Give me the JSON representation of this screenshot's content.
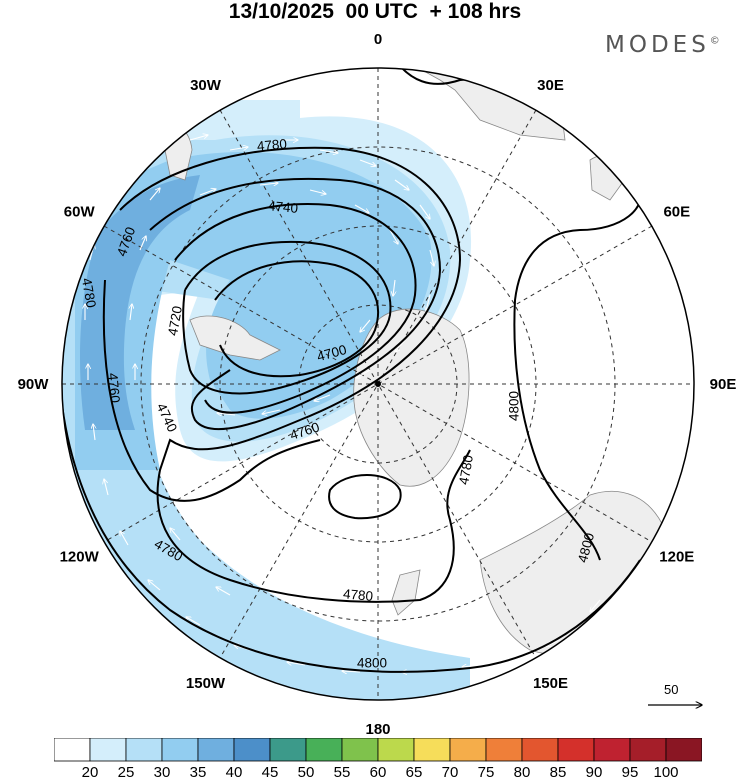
{
  "title": "13/10/2025  00 UTC  + 108 hrs",
  "brand": "MODES",
  "brand_mark": "©",
  "longitude_labels": [
    {
      "deg": 0,
      "text": "0"
    },
    {
      "deg": 30,
      "text": "30E"
    },
    {
      "deg": 60,
      "text": "60E"
    },
    {
      "deg": 90,
      "text": "90E"
    },
    {
      "deg": 120,
      "text": "120E"
    },
    {
      "deg": 150,
      "text": "150E"
    },
    {
      "deg": 180,
      "text": "180"
    },
    {
      "deg": 210,
      "text": "150W"
    },
    {
      "deg": 240,
      "text": "120W"
    },
    {
      "deg": 270,
      "text": "90W"
    },
    {
      "deg": 300,
      "text": "60W"
    },
    {
      "deg": 330,
      "text": "30W"
    }
  ],
  "contour_labels": [
    "4780",
    "4740",
    "4760",
    "4780",
    "4720",
    "4700",
    "4760",
    "4740",
    "4760",
    "4800",
    "4780",
    "4800",
    "4780",
    "4780",
    "4800"
  ],
  "reference_vector": "50",
  "colorbar": {
    "ticks": [
      "20",
      "25",
      "30",
      "35",
      "40",
      "45",
      "50",
      "55",
      "60",
      "65",
      "70",
      "75",
      "80",
      "85",
      "90",
      "95",
      "100"
    ],
    "colors": [
      "#ffffff",
      "#d4eefb",
      "#b5e0f7",
      "#92cdf0",
      "#6fafdf",
      "#4c8fc9",
      "#3c9a8a",
      "#48b058",
      "#7fc24c",
      "#bcd94c",
      "#f6dd5a",
      "#f5ad4a",
      "#ef7f39",
      "#e3562f",
      "#d4302b",
      "#bf2230",
      "#a51e29",
      "#8a1623"
    ]
  },
  "colors": {
    "land": "#eeeeee",
    "contour": "#000000",
    "grid": "#333333"
  }
}
